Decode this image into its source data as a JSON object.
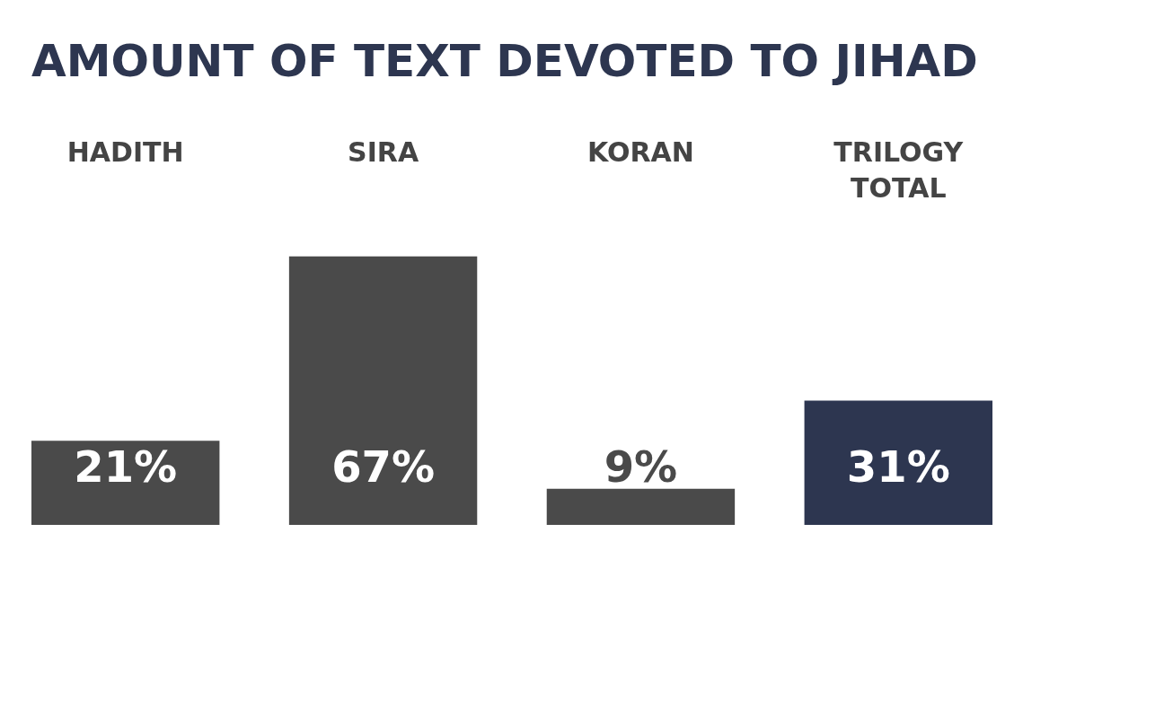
{
  "chart_data": {
    "type": "bar",
    "title": "AMOUNT OF TEXT DEVOTED TO JIHAD",
    "categories": [
      "HADITH",
      "SIRA",
      "KORAN",
      "TRILOGY TOTAL"
    ],
    "values": [
      21,
      67,
      9,
      31
    ],
    "value_labels": [
      "21%",
      "67%",
      "9%",
      "31%"
    ],
    "colors": [
      "#4a4a4a",
      "#4a4a4a",
      "#4a4a4a",
      "#2d3650"
    ]
  }
}
